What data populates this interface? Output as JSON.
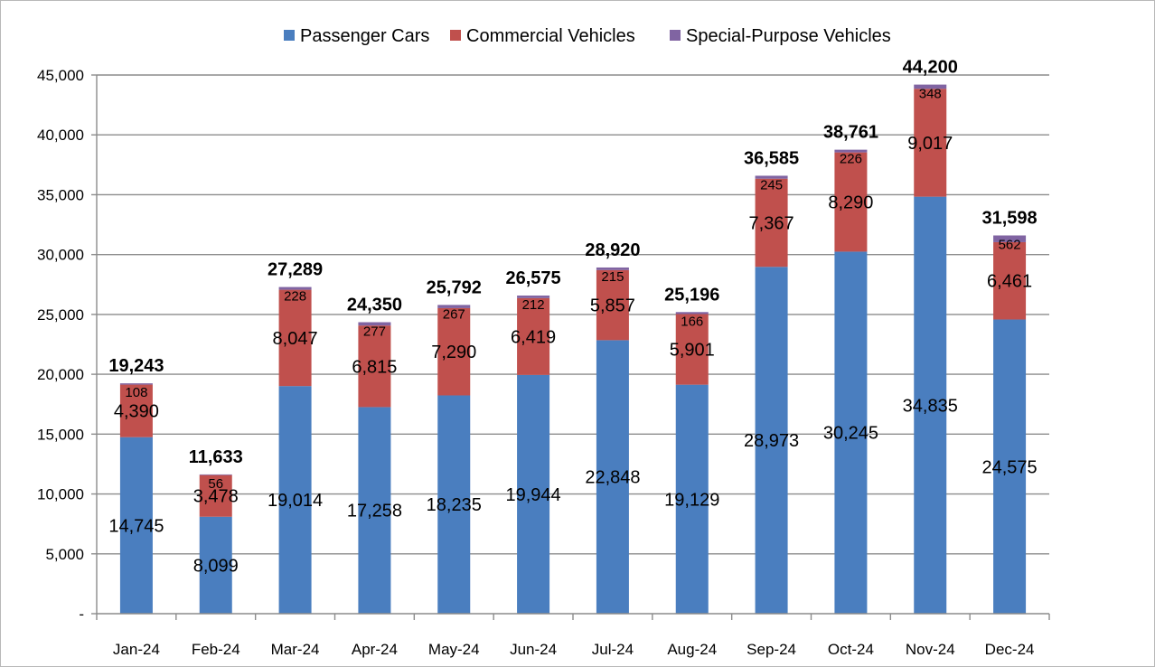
{
  "chart_data": {
    "type": "bar",
    "stacked": true,
    "title": "",
    "xlabel": "",
    "ylabel": "",
    "ylim": [
      0,
      45000
    ],
    "y_ticks": [
      0,
      5000,
      10000,
      15000,
      20000,
      25000,
      30000,
      35000,
      40000,
      45000
    ],
    "y_tick_labels": [
      "-",
      "5,000",
      "10,000",
      "15,000",
      "20,000",
      "25,000",
      "30,000",
      "35,000",
      "40,000",
      "45,000"
    ],
    "grid": true,
    "legend_position": "top-center",
    "categories": [
      "Jan-24",
      "Feb-24",
      "Mar-24",
      "Apr-24",
      "May-24",
      "Jun-24",
      "Jul-24",
      "Aug-24",
      "Sep-24",
      "Oct-24",
      "Nov-24",
      "Dec-24"
    ],
    "series": [
      {
        "name": "Passenger Cars",
        "color": "#4a7ebf",
        "values": [
          14745,
          8099,
          19014,
          17258,
          18235,
          19944,
          22848,
          19129,
          28973,
          30245,
          34835,
          24575
        ]
      },
      {
        "name": "Commercial Vehicles",
        "color": "#c0504d",
        "values": [
          4390,
          3478,
          8047,
          6815,
          7290,
          6419,
          5857,
          5901,
          7367,
          8290,
          9017,
          6461
        ]
      },
      {
        "name": "Special-Purpose Vehicles",
        "color": "#8064a2",
        "values": [
          108,
          56,
          228,
          277,
          267,
          212,
          215,
          166,
          245,
          226,
          348,
          562
        ]
      }
    ],
    "totals": [
      19243,
      11633,
      27289,
      24350,
      25792,
      26575,
      28920,
      25196,
      36585,
      38761,
      44200,
      31598
    ]
  }
}
